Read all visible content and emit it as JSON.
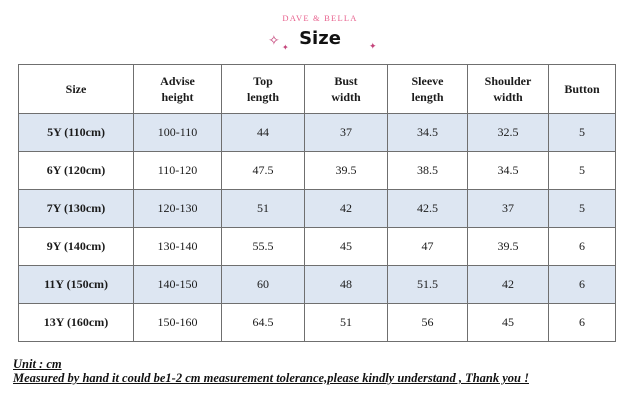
{
  "header": {
    "brand": "DAVE & BELLA",
    "title": "Size"
  },
  "table": {
    "columns": [
      [
        "Size"
      ],
      [
        "Advise",
        "height"
      ],
      [
        "Top",
        "length"
      ],
      [
        "Bust",
        "width"
      ],
      [
        "Sleeve",
        "length"
      ],
      [
        "Shoulder",
        "width"
      ],
      [
        "Button"
      ]
    ],
    "rows": [
      [
        "5Y (110cm)",
        "100-110",
        "44",
        "37",
        "34.5",
        "32.5",
        "5"
      ],
      [
        "6Y (120cm)",
        "110-120",
        "47.5",
        "39.5",
        "38.5",
        "34.5",
        "5"
      ],
      [
        "7Y (130cm)",
        "120-130",
        "51",
        "42",
        "42.5",
        "37",
        "5"
      ],
      [
        "9Y (140cm)",
        "130-140",
        "55.5",
        "45",
        "47",
        "39.5",
        "6"
      ],
      [
        "11Y (150cm)",
        "140-150",
        "60",
        "48",
        "51.5",
        "42",
        "6"
      ],
      [
        "13Y (160cm)",
        "150-160",
        "64.5",
        "51",
        "56",
        "45",
        "6"
      ]
    ],
    "row_shading": [
      "shade",
      "plain",
      "shade",
      "plain",
      "shade",
      "plain"
    ],
    "shade_color": "#dde6f2"
  },
  "footer": {
    "unit": "Unit : cm",
    "note": "Measured by hand it could be1-2 cm measurement tolerance,please kindly understand , Thank you !"
  },
  "colors": {
    "brand": "#e8628e",
    "sparkle": "#c4447a"
  }
}
